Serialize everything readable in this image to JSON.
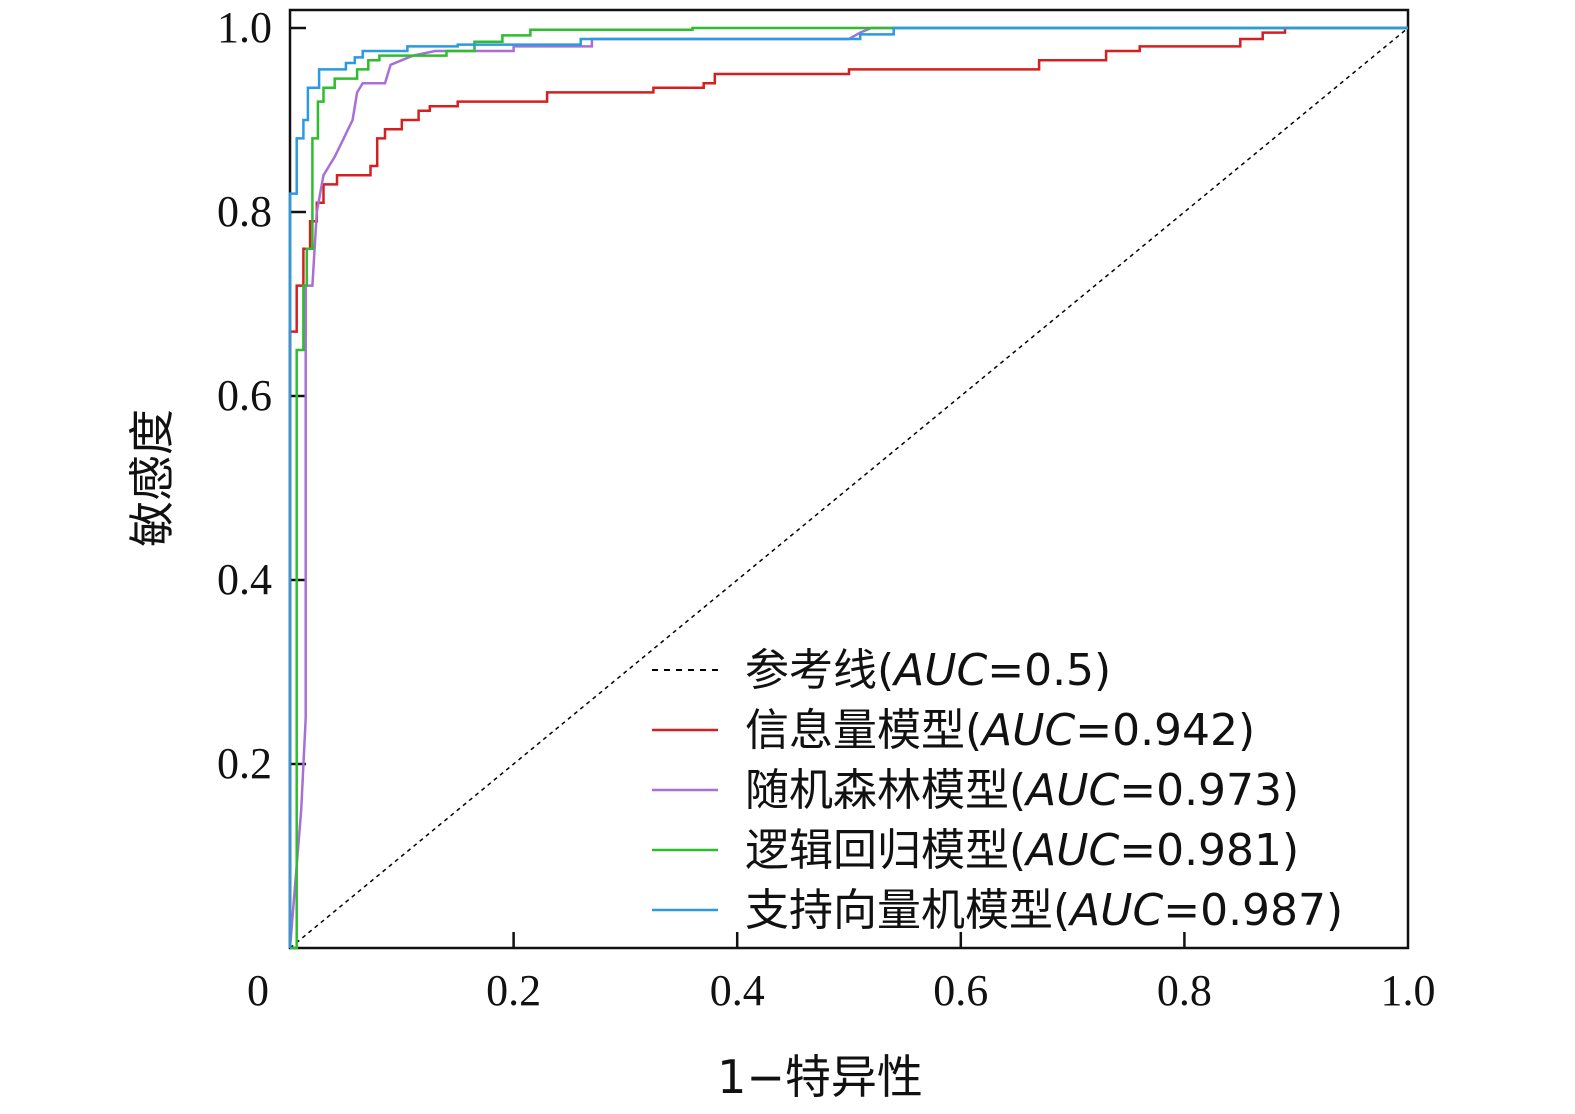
{
  "chart_data": {
    "type": "line",
    "title": "",
    "xlabel": "1−特异性",
    "ylabel": "敏感度",
    "xlim": [
      0,
      1
    ],
    "ylim": [
      0,
      1
    ],
    "x_ticks": [
      0,
      0.2,
      0.4,
      0.6,
      0.8,
      1.0
    ],
    "x_tick_labels": [
      "0",
      "0.2",
      "0.4",
      "0.6",
      "0.8",
      "1.0"
    ],
    "y_ticks": [
      0.2,
      0.4,
      0.6,
      0.8,
      1.0
    ],
    "y_tick_labels": [
      "0.2",
      "0.4",
      "0.6",
      "0.8",
      "1.0"
    ],
    "grid": false,
    "legend_position": "bottom-right",
    "series": [
      {
        "name": "参考线",
        "auc": "0.5",
        "color": "#000000",
        "dashed": true,
        "points": [
          [
            0,
            0
          ],
          [
            1,
            1
          ]
        ]
      },
      {
        "name": "信息量模型",
        "auc": "0.942",
        "color": "#d42020",
        "dashed": false,
        "points": [
          [
            0,
            0
          ],
          [
            0,
            0.67
          ],
          [
            0.006,
            0.67
          ],
          [
            0.006,
            0.72
          ],
          [
            0.012,
            0.72
          ],
          [
            0.012,
            0.76
          ],
          [
            0.018,
            0.76
          ],
          [
            0.018,
            0.79
          ],
          [
            0.024,
            0.79
          ],
          [
            0.024,
            0.81
          ],
          [
            0.03,
            0.81
          ],
          [
            0.03,
            0.83
          ],
          [
            0.042,
            0.83
          ],
          [
            0.042,
            0.84
          ],
          [
            0.072,
            0.84
          ],
          [
            0.072,
            0.85
          ],
          [
            0.078,
            0.85
          ],
          [
            0.078,
            0.88
          ],
          [
            0.085,
            0.88
          ],
          [
            0.085,
            0.89
          ],
          [
            0.1,
            0.89
          ],
          [
            0.1,
            0.9
          ],
          [
            0.115,
            0.9
          ],
          [
            0.115,
            0.91
          ],
          [
            0.125,
            0.91
          ],
          [
            0.125,
            0.915
          ],
          [
            0.15,
            0.915
          ],
          [
            0.15,
            0.92
          ],
          [
            0.23,
            0.92
          ],
          [
            0.23,
            0.93
          ],
          [
            0.325,
            0.93
          ],
          [
            0.325,
            0.935
          ],
          [
            0.37,
            0.935
          ],
          [
            0.37,
            0.94
          ],
          [
            0.38,
            0.94
          ],
          [
            0.38,
            0.95
          ],
          [
            0.5,
            0.95
          ],
          [
            0.5,
            0.955
          ],
          [
            0.67,
            0.955
          ],
          [
            0.67,
            0.965
          ],
          [
            0.73,
            0.965
          ],
          [
            0.73,
            0.975
          ],
          [
            0.76,
            0.975
          ],
          [
            0.76,
            0.98
          ],
          [
            0.85,
            0.98
          ],
          [
            0.85,
            0.988
          ],
          [
            0.87,
            0.988
          ],
          [
            0.87,
            0.995
          ],
          [
            0.89,
            0.995
          ],
          [
            0.89,
            1.0
          ],
          [
            1.0,
            1.0
          ]
        ]
      },
      {
        "name": "随机森林模型",
        "auc": "0.973",
        "color": "#a86fd6",
        "dashed": false,
        "points": [
          [
            0,
            0
          ],
          [
            0.01,
            0.15
          ],
          [
            0.014,
            0.25
          ],
          [
            0.014,
            0.72
          ],
          [
            0.02,
            0.72
          ],
          [
            0.024,
            0.8
          ],
          [
            0.03,
            0.84
          ],
          [
            0.035,
            0.85
          ],
          [
            0.04,
            0.86
          ],
          [
            0.048,
            0.88
          ],
          [
            0.052,
            0.89
          ],
          [
            0.056,
            0.9
          ],
          [
            0.06,
            0.93
          ],
          [
            0.065,
            0.94
          ],
          [
            0.085,
            0.94
          ],
          [
            0.09,
            0.96
          ],
          [
            0.1,
            0.965
          ],
          [
            0.11,
            0.97
          ],
          [
            0.13,
            0.975
          ],
          [
            0.2,
            0.975
          ],
          [
            0.2,
            0.98
          ],
          [
            0.27,
            0.98
          ],
          [
            0.27,
            0.988
          ],
          [
            0.5,
            0.988
          ],
          [
            0.51,
            0.995
          ],
          [
            0.52,
            1.0
          ],
          [
            1.0,
            1.0
          ]
        ]
      },
      {
        "name": "逻辑回归模型",
        "auc": "0.981",
        "color": "#2ebd2e",
        "dashed": false,
        "points": [
          [
            0,
            0
          ],
          [
            0.006,
            0
          ],
          [
            0.006,
            0.65
          ],
          [
            0.012,
            0.65
          ],
          [
            0.012,
            0.72
          ],
          [
            0.015,
            0.72
          ],
          [
            0.015,
            0.76
          ],
          [
            0.02,
            0.76
          ],
          [
            0.02,
            0.88
          ],
          [
            0.025,
            0.88
          ],
          [
            0.025,
            0.92
          ],
          [
            0.03,
            0.92
          ],
          [
            0.03,
            0.935
          ],
          [
            0.04,
            0.935
          ],
          [
            0.04,
            0.945
          ],
          [
            0.06,
            0.945
          ],
          [
            0.06,
            0.955
          ],
          [
            0.07,
            0.955
          ],
          [
            0.07,
            0.965
          ],
          [
            0.08,
            0.965
          ],
          [
            0.08,
            0.97
          ],
          [
            0.14,
            0.97
          ],
          [
            0.14,
            0.975
          ],
          [
            0.165,
            0.975
          ],
          [
            0.165,
            0.985
          ],
          [
            0.19,
            0.985
          ],
          [
            0.19,
            0.992
          ],
          [
            0.215,
            0.992
          ],
          [
            0.215,
            0.998
          ],
          [
            0.36,
            0.998
          ],
          [
            0.36,
            1.0
          ],
          [
            1.0,
            1.0
          ]
        ]
      },
      {
        "name": "支持向量机模型",
        "auc": "0.987",
        "color": "#2a9be0",
        "dashed": false,
        "points": [
          [
            0,
            0
          ],
          [
            0,
            0.82
          ],
          [
            0.006,
            0.82
          ],
          [
            0.006,
            0.88
          ],
          [
            0.012,
            0.88
          ],
          [
            0.012,
            0.9
          ],
          [
            0.016,
            0.9
          ],
          [
            0.016,
            0.935
          ],
          [
            0.026,
            0.935
          ],
          [
            0.026,
            0.955
          ],
          [
            0.05,
            0.955
          ],
          [
            0.05,
            0.962
          ],
          [
            0.058,
            0.962
          ],
          [
            0.058,
            0.968
          ],
          [
            0.065,
            0.968
          ],
          [
            0.065,
            0.975
          ],
          [
            0.105,
            0.975
          ],
          [
            0.105,
            0.98
          ],
          [
            0.15,
            0.98
          ],
          [
            0.15,
            0.982
          ],
          [
            0.26,
            0.982
          ],
          [
            0.26,
            0.988
          ],
          [
            0.51,
            0.988
          ],
          [
            0.51,
            0.993
          ],
          [
            0.54,
            0.993
          ],
          [
            0.54,
            1.0
          ],
          [
            1.0,
            1.0
          ]
        ]
      }
    ]
  }
}
